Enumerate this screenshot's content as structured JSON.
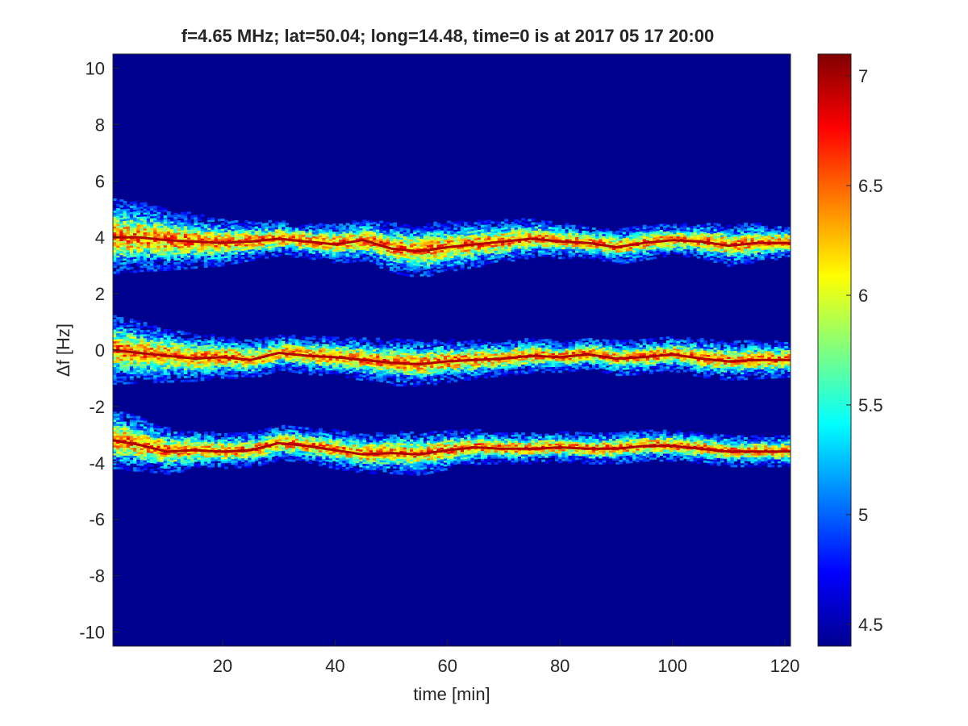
{
  "chart_data": {
    "type": "heatmap",
    "title": "f=4.65 MHz;  lat=50.04; long=14.48, time=0 is at 2017 05 17 20:00",
    "xlabel": "time [min]",
    "ylabel": "Δf [Hz]",
    "xlim": [
      0.5,
      121
    ],
    "ylim": [
      -10.5,
      10.5
    ],
    "x_ticks": [
      20,
      40,
      60,
      80,
      100,
      120
    ],
    "x_tick_labels": [
      "20",
      "40",
      "60",
      "80",
      "100",
      "120"
    ],
    "y_ticks": [
      10,
      8,
      6,
      4,
      2,
      0,
      -2,
      -4,
      -6,
      -8,
      -10
    ],
    "y_tick_labels": [
      "10",
      "8",
      "6",
      "4",
      "2",
      "0",
      "-2",
      "-4",
      "-6",
      "-8",
      "-10"
    ],
    "colorbar": {
      "colormap": "jet",
      "range": [
        4.4,
        7.1
      ],
      "ticks": [
        4.5,
        5,
        5.5,
        6,
        6.5,
        7
      ],
      "tick_labels": [
        "4.5",
        "5",
        "5.5",
        "6",
        "6.5",
        "7"
      ]
    },
    "background_value": 4.45,
    "grid": false,
    "series": [
      {
        "x": [
          0.5,
          5,
          10,
          15,
          20,
          25,
          30,
          35,
          40,
          45,
          50,
          55,
          60,
          65,
          70,
          75,
          80,
          85,
          90,
          95,
          100,
          105,
          110,
          115,
          121
        ],
        "values": [
          4.0,
          4.0,
          3.9,
          3.85,
          3.8,
          3.85,
          3.95,
          3.85,
          3.75,
          3.9,
          3.6,
          3.5,
          3.65,
          3.75,
          3.85,
          3.95,
          3.85,
          3.8,
          3.65,
          3.8,
          3.9,
          3.85,
          3.7,
          3.8,
          3.8
        ],
        "spread": [
          1.0,
          0.9,
          0.8,
          0.7,
          0.6,
          0.5,
          0.45,
          0.45,
          0.5,
          0.55,
          0.65,
          0.7,
          0.65,
          0.6,
          0.55,
          0.5,
          0.45,
          0.4,
          0.45,
          0.45,
          0.4,
          0.45,
          0.55,
          0.5,
          0.4
        ]
      },
      {
        "x": [
          0.5,
          5,
          10,
          15,
          20,
          25,
          30,
          35,
          40,
          45,
          50,
          55,
          60,
          65,
          70,
          75,
          80,
          85,
          90,
          95,
          100,
          105,
          110,
          115,
          121
        ],
        "values": [
          0.0,
          -0.1,
          -0.2,
          -0.3,
          -0.25,
          -0.35,
          -0.1,
          -0.2,
          -0.25,
          -0.35,
          -0.45,
          -0.5,
          -0.4,
          -0.35,
          -0.3,
          -0.2,
          -0.25,
          -0.15,
          -0.3,
          -0.25,
          -0.15,
          -0.3,
          -0.4,
          -0.35,
          -0.35
        ],
        "spread": [
          0.9,
          0.8,
          0.7,
          0.6,
          0.55,
          0.5,
          0.45,
          0.5,
          0.5,
          0.55,
          0.6,
          0.6,
          0.55,
          0.5,
          0.45,
          0.45,
          0.4,
          0.4,
          0.45,
          0.45,
          0.45,
          0.5,
          0.5,
          0.5,
          0.45
        ]
      },
      {
        "x": [
          0.5,
          5,
          10,
          15,
          20,
          25,
          30,
          35,
          40,
          45,
          50,
          55,
          60,
          65,
          70,
          75,
          80,
          85,
          90,
          95,
          100,
          105,
          110,
          115,
          121
        ],
        "values": [
          -3.2,
          -3.35,
          -3.6,
          -3.55,
          -3.6,
          -3.55,
          -3.3,
          -3.4,
          -3.55,
          -3.7,
          -3.65,
          -3.7,
          -3.55,
          -3.45,
          -3.5,
          -3.5,
          -3.45,
          -3.5,
          -3.5,
          -3.4,
          -3.4,
          -3.5,
          -3.6,
          -3.6,
          -3.6
        ],
        "spread": [
          0.8,
          0.7,
          0.6,
          0.5,
          0.45,
          0.45,
          0.45,
          0.45,
          0.5,
          0.5,
          0.55,
          0.55,
          0.5,
          0.45,
          0.4,
          0.4,
          0.4,
          0.4,
          0.4,
          0.4,
          0.4,
          0.4,
          0.4,
          0.4,
          0.4
        ]
      }
    ]
  }
}
